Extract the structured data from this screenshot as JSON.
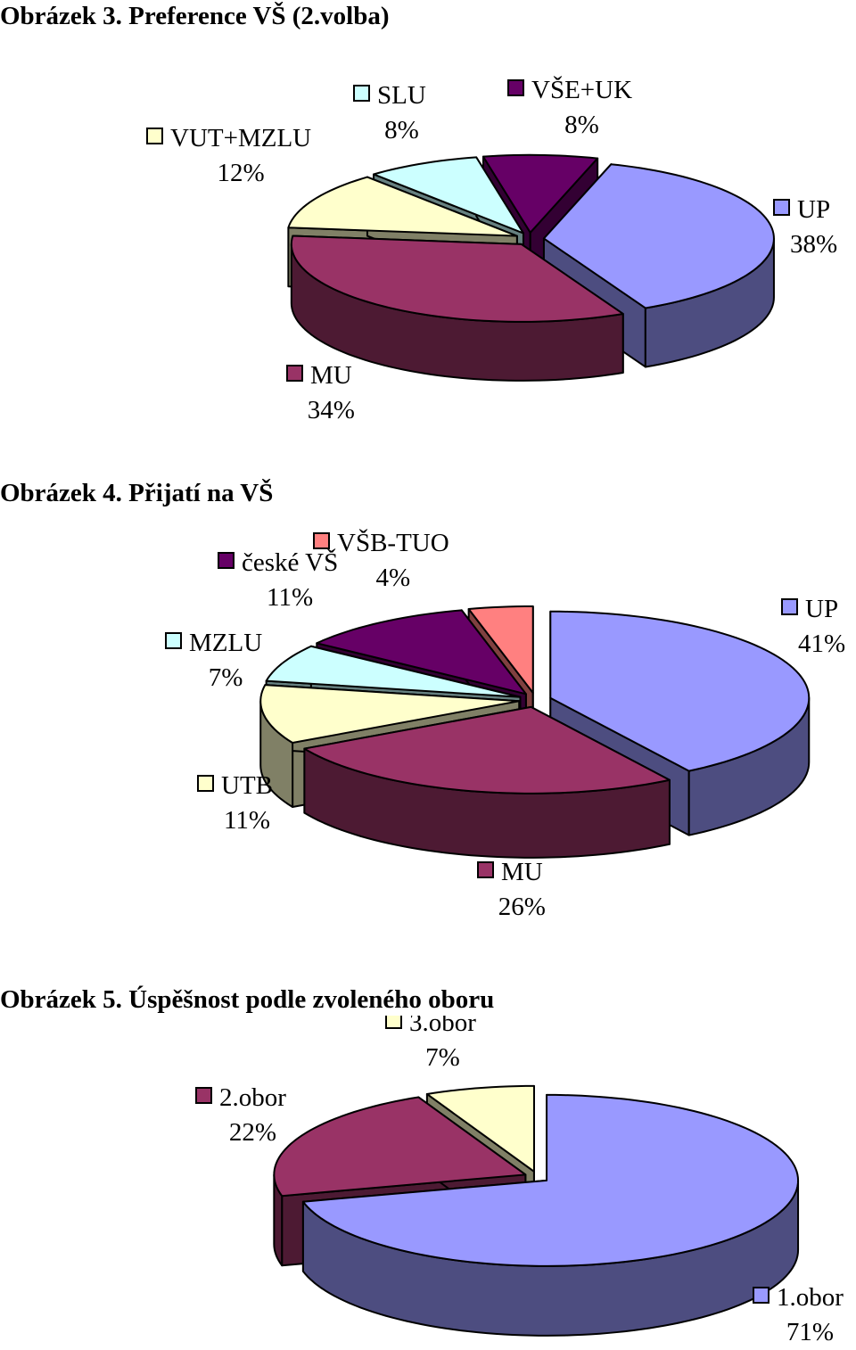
{
  "figures": [
    {
      "caption": "Obrázek 3. Preference VŠ (2.volba)",
      "chart_data": {
        "type": "pie",
        "title": "",
        "slices": [
          {
            "label": "UP",
            "value": 38,
            "value_label": "38%",
            "color": "#9999ff",
            "side_color": "#4d4d80"
          },
          {
            "label": "MU",
            "value": 34,
            "value_label": "34%",
            "color": "#993366",
            "side_color": "#4d1a33"
          },
          {
            "label": "VUT+MZLU",
            "value": 12,
            "value_label": "12%",
            "color": "#ffffcc",
            "side_color": "#808066"
          },
          {
            "label": "SLU",
            "value": 8,
            "value_label": "8%",
            "color": "#ccffff",
            "side_color": "#668080"
          },
          {
            "label": "VŠE+UK",
            "value": 8,
            "value_label": "8%",
            "color": "#660066",
            "side_color": "#330033"
          }
        ]
      }
    },
    {
      "caption": "Obrázek 4. Přijatí na VŠ",
      "chart_data": {
        "type": "pie",
        "title": "",
        "slices": [
          {
            "label": "UP",
            "value": 41,
            "value_label": "41%",
            "color": "#9999ff",
            "side_color": "#4d4d80"
          },
          {
            "label": "MU",
            "value": 26,
            "value_label": "26%",
            "color": "#993366",
            "side_color": "#4d1a33"
          },
          {
            "label": "UTB",
            "value": 11,
            "value_label": "11%",
            "color": "#ffffcc",
            "side_color": "#808066"
          },
          {
            "label": "MZLU",
            "value": 7,
            "value_label": "7%",
            "color": "#ccffff",
            "side_color": "#668080"
          },
          {
            "label": "české VŠ",
            "value": 11,
            "value_label": "11%",
            "color": "#660066",
            "side_color": "#330033"
          },
          {
            "label": "VŠB-TUO",
            "value": 4,
            "value_label": "4%",
            "color": "#ff8080",
            "side_color": "#804040"
          }
        ]
      }
    },
    {
      "caption": "Obrázek 5. Úspěšnost podle zvoleného oboru",
      "chart_data": {
        "type": "pie",
        "title": "",
        "slices": [
          {
            "label": "1.obor",
            "value": 71,
            "value_label": "71%",
            "color": "#9999ff",
            "side_color": "#4d4d80"
          },
          {
            "label": "2.obor",
            "value": 22,
            "value_label": "22%",
            "color": "#993366",
            "side_color": "#4d1a33"
          },
          {
            "label": "3.obor",
            "value": 7,
            "value_label": "7%",
            "color": "#ffffcc",
            "side_color": "#808066"
          }
        ]
      }
    }
  ]
}
